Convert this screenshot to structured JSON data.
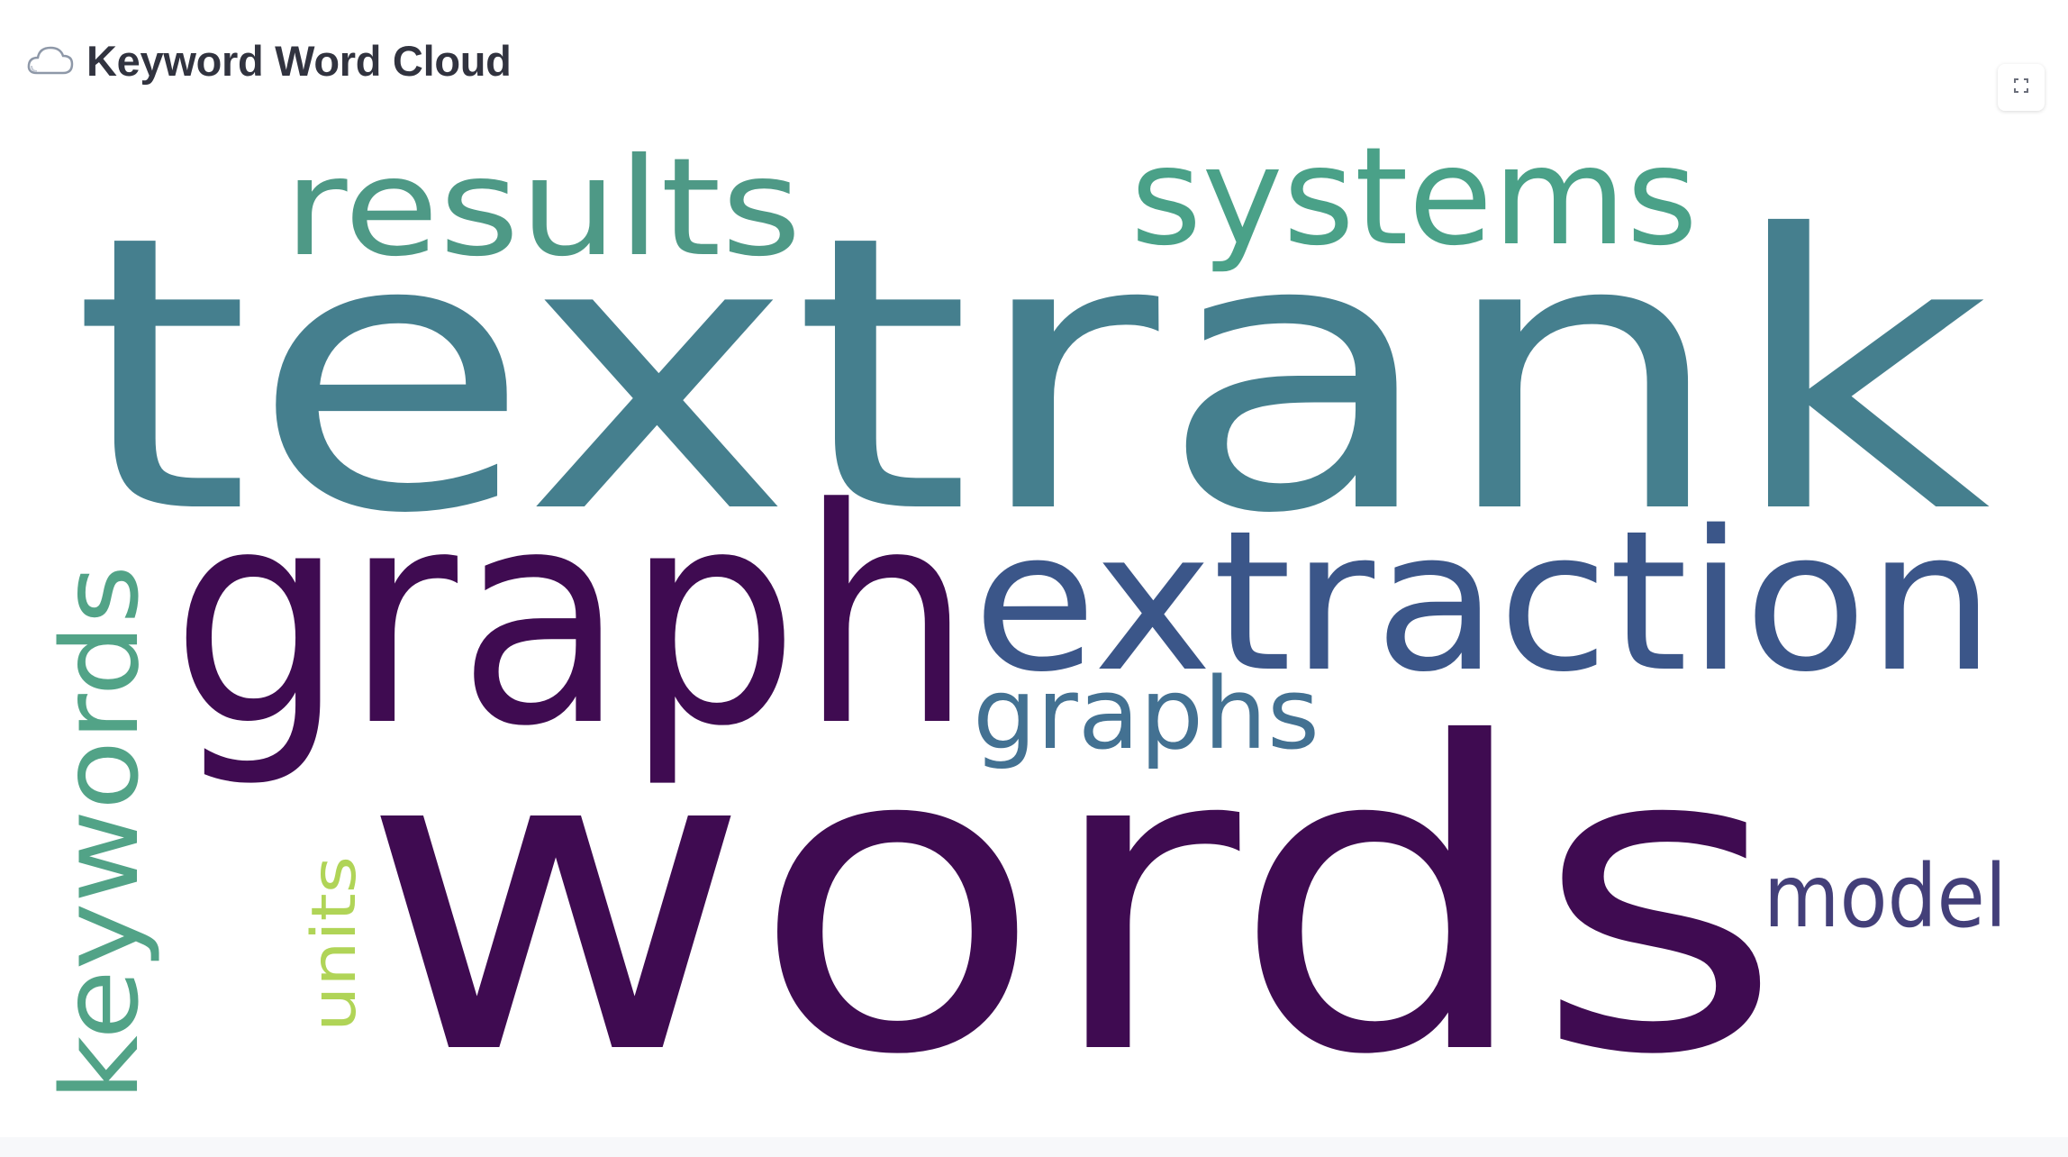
{
  "header": {
    "icon": "cloud-icon",
    "title": "Keyword Word Cloud"
  },
  "toolbar": {
    "fullscreen_icon": "fullscreen-icon"
  },
  "word_cloud": {
    "words": [
      {
        "text": "textrank",
        "color": "#457f8e",
        "rank": 1
      },
      {
        "text": "words",
        "color": "#3f0b51",
        "rank": 2
      },
      {
        "text": "graph",
        "color": "#3f0b51",
        "rank": 3
      },
      {
        "text": "extraction",
        "color": "#3b5689",
        "rank": 4
      },
      {
        "text": "systems",
        "color": "#4aa188",
        "rank": 5
      },
      {
        "text": "results",
        "color": "#4e9986",
        "rank": 6
      },
      {
        "text": "keywords",
        "color": "#52a387",
        "rank": 7
      },
      {
        "text": "graphs",
        "color": "#437192",
        "rank": 8
      },
      {
        "text": "model",
        "color": "#433f79",
        "rank": 9
      },
      {
        "text": "units",
        "color": "#b0d457",
        "rank": 10
      }
    ]
  }
}
